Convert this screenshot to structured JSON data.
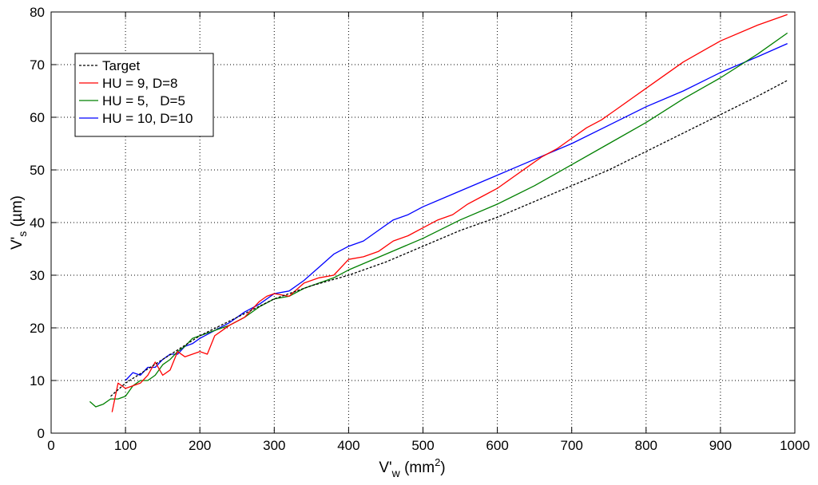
{
  "chart_data": {
    "type": "line",
    "xlabel": {
      "main": "V'",
      "sub": "w",
      "unit_pre": " (mm",
      "unit_sup": "2",
      "unit_post": ")"
    },
    "ylabel": {
      "main": "V'",
      "sub": "s",
      "unit": " (µm)"
    },
    "xlim": [
      0,
      1000
    ],
    "ylim": [
      0,
      80
    ],
    "xticks": [
      0,
      100,
      200,
      300,
      400,
      500,
      600,
      700,
      800,
      900,
      1000
    ],
    "yticks": [
      0,
      10,
      20,
      30,
      40,
      50,
      60,
      70,
      80
    ],
    "grid": true,
    "legend_position": "top-left",
    "series": [
      {
        "name": "Target",
        "color": "#000000",
        "dash": true,
        "x": [
          80,
          100,
          150,
          200,
          250,
          300,
          350,
          400,
          450,
          500,
          550,
          600,
          650,
          700,
          750,
          800,
          850,
          900,
          950,
          990
        ],
        "y": [
          7,
          9.5,
          14,
          18.5,
          22,
          25.5,
          28,
          30,
          32.5,
          35.5,
          38.5,
          41,
          44,
          47,
          50,
          53.5,
          57,
          60.5,
          64,
          67
        ]
      },
      {
        "name": "HU = 9, D=8",
        "color": "#ff0000",
        "dash": false,
        "x": [
          82,
          90,
          100,
          110,
          120,
          130,
          140,
          150,
          160,
          170,
          180,
          190,
          200,
          210,
          220,
          230,
          240,
          260,
          280,
          290,
          300,
          320,
          340,
          360,
          380,
          400,
          420,
          440,
          460,
          480,
          500,
          520,
          540,
          560,
          580,
          600,
          620,
          640,
          660,
          680,
          700,
          720,
          740,
          760,
          780,
          800,
          850,
          900,
          950,
          990
        ],
        "y": [
          4,
          9.5,
          8.5,
          9,
          9.5,
          11,
          13.5,
          11,
          12,
          15.5,
          14.5,
          15,
          15.5,
          15,
          18.5,
          19.5,
          20.5,
          22,
          25,
          26,
          26.5,
          26,
          28.5,
          29.5,
          30,
          33,
          33.5,
          34.5,
          36.5,
          37.5,
          39,
          40.5,
          41.5,
          43.5,
          45,
          46.5,
          48.5,
          50.5,
          52.5,
          54,
          56,
          58,
          59.5,
          61.5,
          63.5,
          65.5,
          70.5,
          74.5,
          77.5,
          79.5
        ]
      },
      {
        "name": "HU = 5,   D=5",
        "color": "#008000",
        "dash": false,
        "x": [
          52,
          60,
          70,
          80,
          90,
          100,
          110,
          120,
          130,
          140,
          150,
          160,
          170,
          180,
          190,
          200,
          220,
          240,
          260,
          280,
          300,
          320,
          340,
          360,
          380,
          400,
          450,
          500,
          550,
          600,
          650,
          700,
          750,
          800,
          850,
          900,
          950,
          990
        ],
        "y": [
          6,
          5,
          5.5,
          6.5,
          6.5,
          7,
          9,
          10,
          10,
          11,
          13,
          14,
          15.5,
          16.5,
          18,
          18.5,
          19.5,
          20.5,
          22,
          24,
          25.5,
          26,
          27.5,
          28.5,
          29.5,
          31,
          34,
          37,
          40.5,
          43.5,
          47,
          51,
          55,
          59,
          63.5,
          67.5,
          72,
          76
        ]
      },
      {
        "name": "HU = 10, D=10",
        "color": "#0000ff",
        "dash": false,
        "x": [
          100,
          110,
          120,
          130,
          140,
          150,
          160,
          170,
          180,
          190,
          200,
          220,
          240,
          260,
          280,
          300,
          320,
          340,
          360,
          380,
          400,
          420,
          440,
          460,
          480,
          500,
          550,
          600,
          650,
          700,
          750,
          800,
          850,
          900,
          950,
          990
        ],
        "y": [
          10,
          11.5,
          11,
          12.5,
          12.5,
          14,
          15,
          15,
          16.5,
          17,
          18,
          19.5,
          21,
          23,
          24.5,
          26.5,
          27,
          29,
          31.5,
          34,
          35.5,
          36.5,
          38.5,
          40.5,
          41.5,
          43,
          46,
          49,
          52,
          55,
          58.5,
          62,
          65,
          68.5,
          71.5,
          74
        ]
      }
    ]
  }
}
